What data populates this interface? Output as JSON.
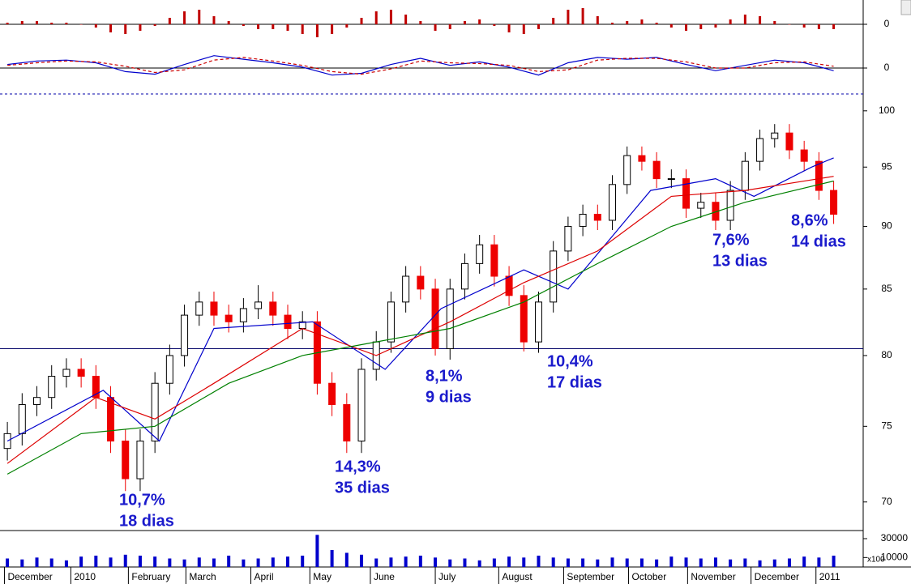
{
  "chart_data": [
    {
      "type": "bar",
      "color": "#c00000",
      "x": [
        0,
        1,
        2,
        3,
        4,
        5,
        6,
        7,
        8,
        9,
        10,
        11,
        12,
        13,
        14,
        15,
        16,
        17,
        18,
        19,
        20,
        21,
        22,
        23,
        24,
        25,
        26,
        27,
        28,
        29,
        30,
        31,
        32,
        33,
        34,
        35,
        36,
        37,
        38,
        39,
        40,
        41,
        42,
        43,
        44,
        45,
        46,
        47,
        48,
        49,
        50,
        51,
        52,
        53,
        54,
        55,
        56
      ],
      "values": [
        0.1,
        0.2,
        0.2,
        0.1,
        0.1,
        0,
        -0.2,
        -0.5,
        -0.6,
        -0.4,
        -0.1,
        0.4,
        0.8,
        0.9,
        0.5,
        0.2,
        -0.1,
        -0.3,
        -0.3,
        -0.4,
        -0.6,
        -0.8,
        -0.6,
        -0.2,
        0.4,
        0.8,
        0.9,
        0.6,
        0.2,
        -0.4,
        -0.3,
        0.2,
        0.3,
        -0.1,
        -0.5,
        -0.6,
        -0.3,
        0.4,
        0.9,
        1.0,
        0.5,
        0.1,
        0.2,
        0.3,
        0.1,
        -0.2,
        -0.4,
        -0.3,
        -0.2,
        0.3,
        0.6,
        0.5,
        0.2,
        0,
        -0.2,
        -0.3,
        -0.3
      ],
      "xlim": [
        -0.5,
        58
      ],
      "ylim": [
        -1.4,
        1.4
      ],
      "yticks": [
        0
      ],
      "grid": true
    },
    {
      "type": "line",
      "x": [
        0,
        2,
        4,
        6,
        8,
        10,
        12,
        14,
        16,
        18,
        20,
        22,
        24,
        26,
        28,
        30,
        32,
        34,
        36,
        38,
        40,
        42,
        44,
        46,
        48,
        50,
        52,
        54,
        56
      ],
      "series": [
        {
          "color": "#0000cc",
          "values": [
            0.4,
            0.8,
            0.9,
            0.6,
            -0.4,
            -0.7,
            0.4,
            1.4,
            1.0,
            0.6,
            0.1,
            -0.8,
            -0.6,
            0.4,
            1.1,
            0.3,
            0.7,
            0.1,
            -0.8,
            0.6,
            1.2,
            1.0,
            1.2,
            0.4,
            -0.3,
            0.3,
            0.9,
            0.6,
            -0.3
          ]
        },
        {
          "color": "#cc0000",
          "dashed": true,
          "values": [
            0.3,
            0.6,
            0.8,
            0.7,
            0.2,
            -0.5,
            -0.2,
            0.9,
            1.2,
            0.8,
            0.3,
            -0.4,
            -0.7,
            -0.1,
            0.8,
            0.6,
            0.5,
            0.3,
            -0.4,
            -0.2,
            0.9,
            1.1,
            1.1,
            0.7,
            0.0,
            0.0,
            0.6,
            0.7,
            0.2
          ]
        }
      ],
      "xlim": [
        -0.5,
        58
      ],
      "ylim": [
        -2.2,
        2.2
      ],
      "yticks": [
        0
      ],
      "grid": true
    },
    {
      "type": "candlestick",
      "up_color": "#ffffff",
      "down_color": "#ee0000",
      "log_scale": true,
      "grid": false,
      "x": [
        0,
        1,
        2,
        3,
        4,
        5,
        6,
        7,
        8,
        9,
        10,
        11,
        12,
        13,
        14,
        15,
        16,
        17,
        18,
        19,
        20,
        21,
        22,
        23,
        24,
        25,
        26,
        27,
        28,
        29,
        30,
        31,
        32,
        33,
        34,
        35,
        36,
        37,
        38,
        39,
        40,
        41,
        42,
        43,
        44,
        45,
        46,
        47,
        48,
        49,
        50,
        51,
        52,
        53,
        54,
        55,
        56
      ],
      "open": [
        73.5,
        74.5,
        76.5,
        77,
        78.5,
        79,
        78.5,
        77,
        74,
        71.5,
        74,
        78,
        80,
        83,
        84,
        83,
        82.5,
        83.5,
        84,
        83,
        82,
        82.5,
        78,
        76.5,
        74,
        79,
        81,
        84,
        86,
        85,
        80.5,
        85,
        87,
        88.5,
        86,
        84.5,
        81,
        84,
        88,
        90,
        91,
        90.5,
        93.5,
        96,
        95.5,
        94,
        94,
        91.5,
        92,
        90.5,
        93,
        95.5,
        97.5,
        98,
        96.5,
        95.5,
        93
      ],
      "high": [
        75.3,
        77.3,
        77.8,
        79.3,
        79.8,
        79.8,
        79.3,
        77.8,
        74.8,
        74.8,
        78.8,
        80.8,
        83.8,
        84.8,
        84.8,
        83.8,
        84.3,
        85.3,
        84.8,
        83.8,
        83.3,
        83.3,
        78.8,
        77.3,
        79.8,
        81.8,
        84.8,
        86.8,
        86.8,
        85.8,
        85.8,
        87.8,
        89.3,
        89.3,
        86.8,
        85.3,
        84.8,
        88.8,
        90.8,
        91.8,
        91.8,
        94.3,
        96.8,
        96.8,
        96.3,
        94.8,
        94.8,
        92.8,
        92.8,
        93.8,
        96.3,
        98.3,
        98.8,
        98.8,
        97.3,
        96.3,
        93.8
      ],
      "low": [
        72.7,
        73.7,
        75.7,
        76.2,
        77.7,
        77.7,
        76.2,
        73.2,
        70.7,
        70.7,
        73.2,
        77.2,
        79.2,
        82.2,
        82.2,
        81.7,
        81.7,
        82.7,
        82.2,
        81.2,
        81.2,
        77.2,
        75.7,
        73.2,
        73.2,
        78.2,
        80.2,
        83.2,
        84.2,
        80,
        79.7,
        84.2,
        86.2,
        85.2,
        83.7,
        80.3,
        80.2,
        83.2,
        87.2,
        89.2,
        89.7,
        89.7,
        92.7,
        94.7,
        93.2,
        93.2,
        90.7,
        90.7,
        89.7,
        89.7,
        92.2,
        94.7,
        96.7,
        95.7,
        94.7,
        92.2,
        90.2
      ],
      "close": [
        74.5,
        76.5,
        77,
        78.5,
        79,
        78.5,
        77,
        74,
        71.5,
        74,
        78,
        80,
        83,
        84,
        83,
        82.5,
        83.5,
        84,
        83,
        82,
        82.5,
        78,
        76.5,
        74,
        79,
        81,
        84,
        86,
        85,
        80.5,
        85,
        87,
        88.5,
        86,
        84.5,
        81,
        84,
        88,
        90,
        91,
        90.5,
        93.5,
        96,
        95.5,
        94,
        94,
        91.5,
        92,
        90.5,
        93,
        95.5,
        97.5,
        98,
        96.5,
        95.5,
        93,
        91
      ],
      "series": [
        {
          "color": "#0000cc",
          "x": [
            0,
            6.5,
            10.3,
            14,
            20.7,
            25.6,
            29.4,
            35,
            38,
            43.6,
            48,
            50.6,
            54.5,
            56
          ],
          "values": [
            74,
            77.5,
            74,
            82,
            82.5,
            79,
            83.5,
            86.5,
            85,
            93,
            94,
            92.5,
            95,
            95.8
          ]
        },
        {
          "color": "#dd0000",
          "x": [
            0,
            6,
            10,
            14,
            20,
            25,
            30,
            35,
            40,
            45,
            50,
            56
          ],
          "values": [
            72.5,
            77,
            75.5,
            78,
            82,
            80,
            82.5,
            85.5,
            88,
            92.5,
            93,
            94.2
          ]
        },
        {
          "color": "#008000",
          "x": [
            0,
            5,
            10,
            15,
            20,
            25,
            30,
            35,
            40,
            45,
            50,
            56
          ],
          "values": [
            71.8,
            74.5,
            75,
            78,
            80,
            81,
            82,
            84,
            87,
            90,
            92,
            93.8
          ]
        }
      ],
      "reference_line": 80.5,
      "annotations": [
        {
          "lines": [
            "10,7%",
            "18 dias"
          ]
        },
        {
          "lines": [
            "14,3%",
            "35 dias"
          ]
        },
        {
          "lines": [
            "8,1%",
            "9 dias"
          ]
        },
        {
          "lines": [
            "10,4%",
            "17 dias"
          ]
        },
        {
          "lines": [
            "7,6%",
            "13 dias"
          ]
        },
        {
          "lines": [
            "8,6%",
            "14 dias"
          ]
        }
      ],
      "xlim": [
        -0.5,
        58
      ],
      "ylim": [
        68.2,
        101.4
      ],
      "yticks": [
        70,
        75,
        80,
        85,
        90,
        95,
        100
      ]
    },
    {
      "type": "bar",
      "color": "#0000cc",
      "y_unit_label": "x100",
      "x": [
        0,
        1,
        2,
        3,
        4,
        5,
        6,
        7,
        8,
        9,
        10,
        11,
        12,
        13,
        14,
        15,
        16,
        17,
        18,
        19,
        20,
        21,
        22,
        23,
        24,
        25,
        26,
        27,
        28,
        29,
        30,
        31,
        32,
        33,
        34,
        35,
        36,
        37,
        38,
        39,
        40,
        41,
        42,
        43,
        44,
        45,
        46,
        47,
        48,
        49,
        50,
        51,
        52,
        53,
        54,
        55,
        56
      ],
      "values": [
        9000,
        8000,
        10000,
        9000,
        7000,
        11000,
        12000,
        10000,
        13000,
        12000,
        11000,
        9000,
        8000,
        10000,
        9000,
        12000,
        8000,
        9000,
        10000,
        11000,
        12000,
        34000,
        18000,
        15000,
        13000,
        9000,
        10000,
        11000,
        12000,
        10000,
        8000,
        9000,
        7000,
        9000,
        11000,
        10000,
        12000,
        10000,
        9000,
        9000,
        8000,
        10000,
        9000,
        9000,
        8000,
        11000,
        10000,
        9000,
        10000,
        8000,
        9000,
        7000,
        8000,
        9000,
        11000,
        10000,
        12000
      ],
      "xlim": [
        -0.5,
        58
      ],
      "ylim": [
        0,
        36000
      ],
      "yticks": [
        10000,
        30000
      ],
      "grid": false,
      "xticks": [
        {
          "value": -0.2,
          "label": "December"
        },
        {
          "value": 4.3,
          "label": "2010"
        },
        {
          "value": 8.2,
          "label": "February"
        },
        {
          "value": 12.1,
          "label": "March"
        },
        {
          "value": 16.5,
          "label": "April"
        },
        {
          "value": 20.5,
          "label": "May"
        },
        {
          "value": 24.6,
          "label": "June"
        },
        {
          "value": 29.0,
          "label": "July"
        },
        {
          "value": 33.3,
          "label": "August"
        },
        {
          "value": 37.7,
          "label": "September"
        },
        {
          "value": 42.1,
          "label": "October"
        },
        {
          "value": 46.1,
          "label": "November"
        },
        {
          "value": 50.4,
          "label": "December"
        },
        {
          "value": 54.8,
          "label": "2011"
        }
      ]
    }
  ]
}
